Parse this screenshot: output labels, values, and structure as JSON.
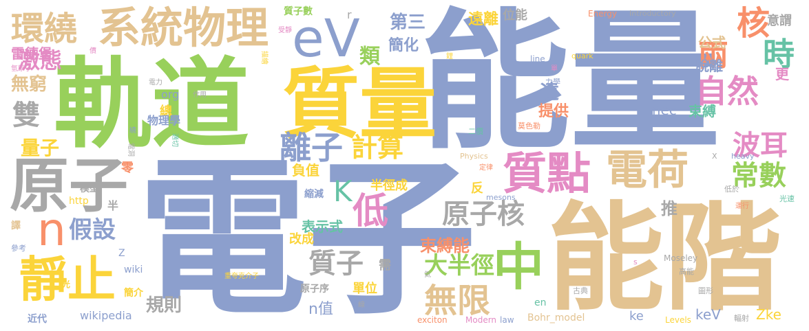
{
  "words": [
    {
      "text": "電子",
      "color": "#8c9fcd"
    },
    {
      "text": "能量",
      "color": "#8c9fcd"
    },
    {
      "text": "軌道",
      "color": "#98d05b"
    },
    {
      "text": "能階",
      "color": "#e3c391"
    },
    {
      "text": "質量",
      "color": "#fbd43a"
    },
    {
      "text": "原子",
      "color": "#a8a8a8"
    },
    {
      "text": "系統物理",
      "color": "#e3c391"
    },
    {
      "text": "環繞",
      "color": "#e3c391"
    },
    {
      "text": "eV",
      "color": "#8c9fcd"
    },
    {
      "text": "質點",
      "color": "#e48bc4"
    },
    {
      "text": "電荷",
      "color": "#e3c391"
    },
    {
      "text": "中",
      "color": "#98d05b"
    },
    {
      "text": "靜止",
      "color": "#fbd43a"
    },
    {
      "text": "n",
      "color": "#f8906a"
    },
    {
      "text": "假設",
      "color": "#8c9fcd"
    },
    {
      "text": "原子核",
      "color": "#a8a8a8"
    },
    {
      "text": "自然",
      "color": "#e48bc4"
    },
    {
      "text": "兩",
      "color": "#f8906a"
    },
    {
      "text": "核",
      "color": "#f8906a"
    },
    {
      "text": "時",
      "color": "#66c2a5"
    },
    {
      "text": "波耳",
      "color": "#e48bc4"
    },
    {
      "text": "常數",
      "color": "#98d05b"
    },
    {
      "text": "離子",
      "color": "#8c9fcd"
    },
    {
      "text": "計算",
      "color": "#fbd43a"
    },
    {
      "text": "低",
      "color": "#e48bc4"
    },
    {
      "text": "K",
      "color": "#66c2a5"
    },
    {
      "text": "無限",
      "color": "#e3c391"
    },
    {
      "text": "質子",
      "color": "#a8a8a8"
    },
    {
      "text": "大半徑",
      "color": "#98d05b"
    },
    {
      "text": "雙",
      "color": "#a8a8a8"
    },
    {
      "text": "激態",
      "color": "#e48bc4"
    },
    {
      "text": "無窮",
      "color": "#e3c391"
    },
    {
      "text": "雷德堡",
      "color": "#e48bc4"
    },
    {
      "text": "量子",
      "color": "#fbd43a"
    },
    {
      "text": "第三",
      "color": "#8c9fcd"
    },
    {
      "text": "類",
      "color": "#98d05b"
    },
    {
      "text": "簡化",
      "color": "#8c9fcd"
    },
    {
      "text": "遠離",
      "color": "#fbd43a"
    },
    {
      "text": "位能",
      "color": "#a8a8a8"
    },
    {
      "text": "公式",
      "color": "#e3c391"
    },
    {
      "text": "脫離",
      "color": "#8c9fcd"
    },
    {
      "text": "遠",
      "color": "#8c9fcd"
    },
    {
      "text": "提供",
      "color": "#f8906a"
    },
    {
      "text": "束縛",
      "color": "#66c2a5"
    },
    {
      "text": "mec",
      "color": "#8c9fcd"
    },
    {
      "text": "意謂",
      "color": "#a8a8a8"
    },
    {
      "text": "更",
      "color": "#e48bc4"
    },
    {
      "text": "推",
      "color": "#a8a8a8"
    },
    {
      "text": "束縛能",
      "color": "#f8906a"
    },
    {
      "text": "半徑成",
      "color": "#fbd43a"
    },
    {
      "text": "負值",
      "color": "#fbd43a"
    },
    {
      "text": "反",
      "color": "#fbd43a"
    },
    {
      "text": "表示式",
      "color": "#66c2a5"
    },
    {
      "text": "改成",
      "color": "#fbd43a"
    },
    {
      "text": "n值",
      "color": "#8c9fcd"
    },
    {
      "text": "單位",
      "color": "#fbd43a"
    },
    {
      "text": "規則",
      "color": "#a8a8a8"
    },
    {
      "text": "需",
      "color": "#a8a8a8"
    },
    {
      "text": "keV",
      "color": "#8c9fcd"
    },
    {
      "text": "Zke",
      "color": "#fbd43a"
    },
    {
      "text": "ke",
      "color": "#8c9fcd"
    },
    {
      "text": "Bohr_model",
      "color": "#e3c391"
    },
    {
      "text": "wikipedia",
      "color": "#8c9fcd"
    },
    {
      "text": "總",
      "color": "#fbd43a"
    },
    {
      "text": "物理學",
      "color": "#8c9fcd"
    },
    {
      "text": "org",
      "color": "#8c9fcd"
    },
    {
      "text": "http",
      "color": "#fbd43a"
    },
    {
      "text": "零",
      "color": "#f8906a"
    },
    {
      "text": "模型",
      "color": "#a8a8a8"
    },
    {
      "text": "半",
      "color": "#a8a8a8"
    },
    {
      "text": "Z",
      "color": "#8c9fcd"
    },
    {
      "text": "wiki",
      "color": "#8c9fcd"
    },
    {
      "text": "簡介",
      "color": "#fbd43a"
    },
    {
      "text": "近代",
      "color": "#8c9fcd"
    },
    {
      "text": "譯",
      "color": "#e3c391"
    },
    {
      "text": "參考",
      "color": "#8c9fcd"
    },
    {
      "text": "光",
      "color": "#fbd43a"
    },
    {
      "text": "原子序",
      "color": "#a8a8a8"
    },
    {
      "text": "縮減",
      "color": "#8c9fcd"
    },
    {
      "text": "en",
      "color": "#66c2a5"
    },
    {
      "text": "exciton",
      "color": "#f8906a"
    },
    {
      "text": "Modern",
      "color": "#e48bc4"
    },
    {
      "text": "law",
      "color": "#8c9fcd"
    },
    {
      "text": "Levels",
      "color": "#fbd43a"
    },
    {
      "text": "Moseley",
      "color": "#a8a8a8"
    },
    {
      "text": "高能",
      "color": "#a8a8a8"
    },
    {
      "text": "輻射",
      "color": "#a8a8a8"
    },
    {
      "text": "光速",
      "color": "#66c2a5"
    },
    {
      "text": "低於",
      "color": "#a8a8a8"
    },
    {
      "text": "Energy",
      "color": "#f8906a"
    },
    {
      "text": "Introductory",
      "color": "#a8a8a8"
    },
    {
      "text": "質子數",
      "color": "#98d05b"
    },
    {
      "text": "r",
      "color": "#a8a8a8"
    },
    {
      "text": "line",
      "color": "#8c9fcd"
    },
    {
      "text": "quark",
      "color": "#fbd43a"
    },
    {
      "text": "力學",
      "color": "#8c9fcd"
    },
    {
      "text": "莫色勒",
      "color": "#f8906a"
    },
    {
      "text": "二價",
      "color": "#66c2a5"
    },
    {
      "text": "Physics",
      "color": "#e3c391"
    },
    {
      "text": "mesons",
      "color": "#8c9fcd"
    },
    {
      "text": "heavy",
      "color": "#8c9fcd"
    },
    {
      "text": "X",
      "color": "#a8a8a8"
    },
    {
      "text": "古典",
      "color": "#a8a8a8"
    },
    {
      "text": "圖形",
      "color": "#a8a8a8"
    },
    {
      "text": "s",
      "color": "#e48bc4"
    },
    {
      "text": "重夸克介子",
      "color": "#fbd43a"
    },
    {
      "text": "作用",
      "color": "#a8a8a8"
    },
    {
      "text": "電力",
      "color": "#a8a8a8"
    },
    {
      "text": "電洞",
      "color": "#a8a8a8"
    },
    {
      "text": "適切",
      "color": "#66c2a5"
    },
    {
      "text": "氫原子",
      "color": "#e48bc4"
    },
    {
      "text": "價",
      "color": "#e48bc4"
    },
    {
      "text": "受靜",
      "color": "#e48bc4"
    },
    {
      "text": "描繪",
      "color": "#fbd43a"
    },
    {
      "text": "鋰",
      "color": "#fbd43a"
    },
    {
      "text": "單",
      "color": "#e48bc4"
    },
    {
      "text": "定律",
      "color": "#f8906a"
    },
    {
      "text": "運行",
      "color": "#f8906a"
    },
    {
      "text": "氦",
      "color": "#a8a8a8"
    },
    {
      "text": "線",
      "color": "#a8a8a8"
    },
    {
      "text": "繞",
      "color": "#8c9fcd"
    }
  ]
}
